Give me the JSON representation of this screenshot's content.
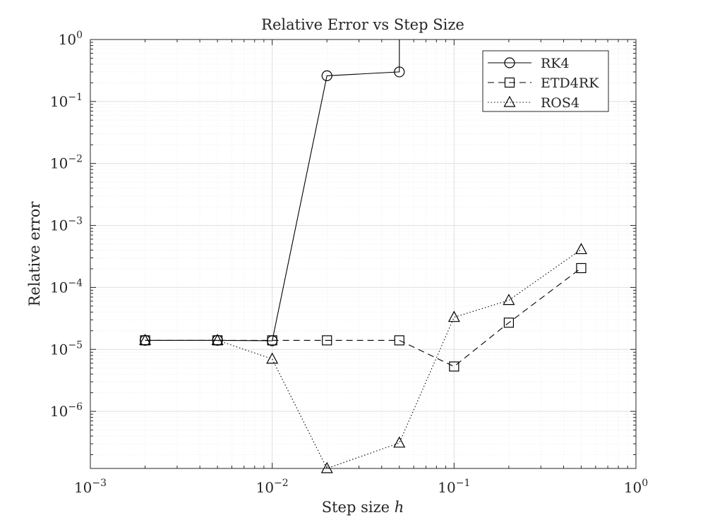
{
  "chart_data": {
    "type": "line",
    "title": "Relative Error vs Step Size",
    "xlabel_text": "Step size ",
    "xlabel_var": "h",
    "ylabel": "Relative error",
    "xscale": "log",
    "yscale": "log",
    "xlim": [
      0.001,
      1
    ],
    "ylim": [
      1.2e-07,
      1
    ],
    "grid": true,
    "minor_grid": true,
    "legend_position": "top-right",
    "x_ticks": [
      {
        "value": 0.001,
        "base": "10",
        "exp": "−3"
      },
      {
        "value": 0.01,
        "base": "10",
        "exp": "−2"
      },
      {
        "value": 0.1,
        "base": "10",
        "exp": "−1"
      },
      {
        "value": 1,
        "base": "10",
        "exp": "0"
      }
    ],
    "y_ticks": [
      {
        "value": 1e-06,
        "base": "10",
        "exp": "−6"
      },
      {
        "value": 1e-05,
        "base": "10",
        "exp": "−5"
      },
      {
        "value": 0.0001,
        "base": "10",
        "exp": "−4"
      },
      {
        "value": 0.001,
        "base": "10",
        "exp": "−3"
      },
      {
        "value": 0.01,
        "base": "10",
        "exp": "−2"
      },
      {
        "value": 0.1,
        "base": "10",
        "exp": "−1"
      },
      {
        "value": 1,
        "base": "10",
        "exp": "0"
      }
    ],
    "series": [
      {
        "name": "RK4",
        "marker": "circle",
        "linestyle": "solid",
        "x": [
          0.002,
          0.005,
          0.01,
          0.02,
          0.05,
          0.05
        ],
        "y": [
          1.4e-05,
          1.4e-05,
          1.38e-05,
          0.26,
          0.3,
          1.0
        ],
        "markers": [
          true,
          true,
          true,
          true,
          true,
          false
        ]
      },
      {
        "name": "ETD4RK",
        "marker": "square",
        "linestyle": "dashed",
        "x": [
          0.002,
          0.005,
          0.01,
          0.02,
          0.05,
          0.1,
          0.2,
          0.5
        ],
        "y": [
          1.4e-05,
          1.4e-05,
          1.4e-05,
          1.4e-05,
          1.4e-05,
          5.3e-06,
          2.7e-05,
          0.000205
        ]
      },
      {
        "name": "ROS4",
        "marker": "triangle",
        "linestyle": "dotted",
        "x": [
          0.002,
          0.005,
          0.01,
          0.02,
          0.05,
          0.1,
          0.2,
          0.5
        ],
        "y": [
          1.4e-05,
          1.4e-05,
          7e-06,
          1.2e-07,
          3.1e-07,
          3.3e-05,
          6.2e-05,
          0.00041
        ]
      }
    ],
    "colors": {
      "axes": "#262626",
      "line": "#000000",
      "grid": "#dfdfdf",
      "grid_minor": "#eeeeee"
    }
  }
}
